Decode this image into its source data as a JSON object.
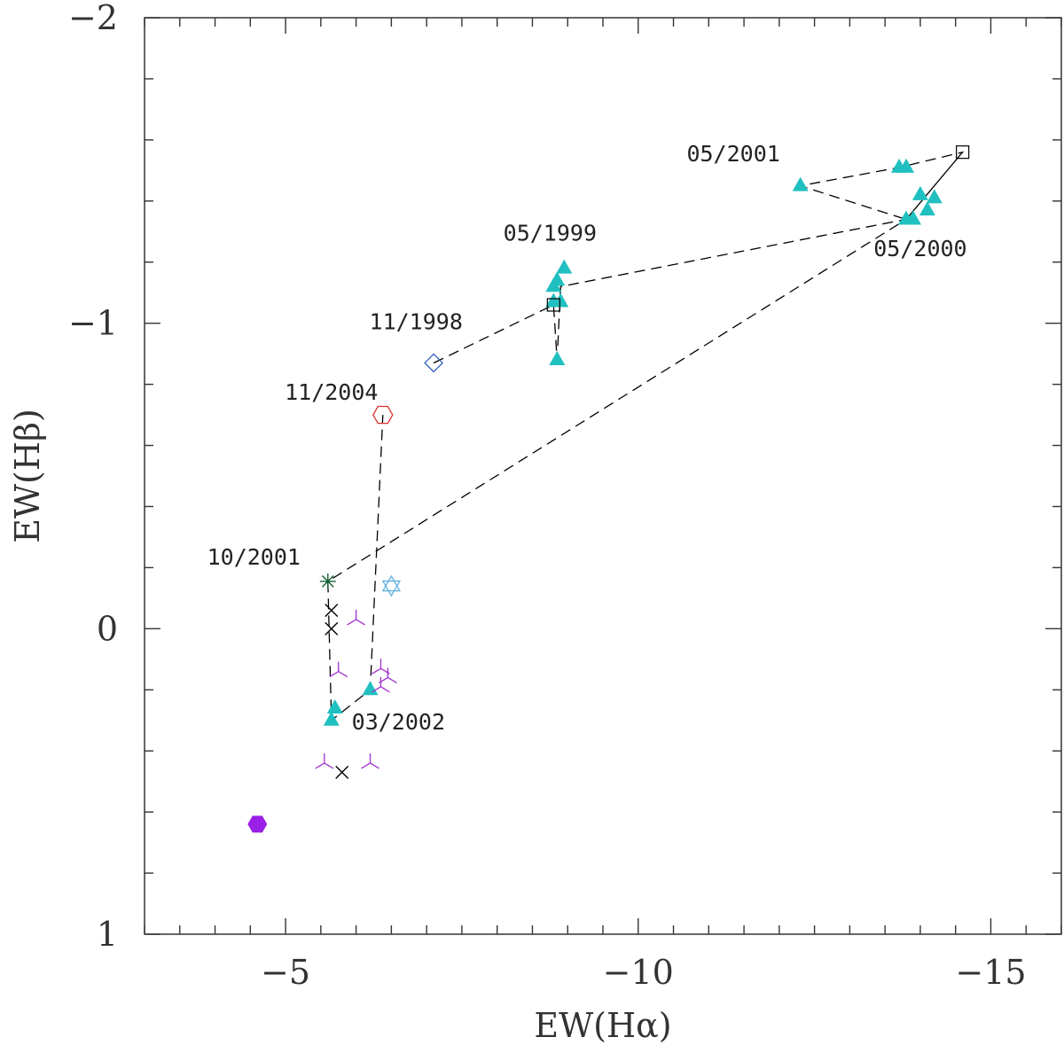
{
  "chart_data": {
    "type": "scatter",
    "xlabel": "EW(Hα)",
    "ylabel": "EW(Hβ)",
    "xlim": [
      -3,
      -16
    ],
    "ylim": [
      1,
      -2
    ],
    "xticks": [
      {
        "value": -5,
        "label": "−5"
      },
      {
        "value": -10,
        "label": "−10"
      },
      {
        "value": -15,
        "label": "−15"
      }
    ],
    "yticks": [
      {
        "value": -2,
        "label": "−2"
      },
      {
        "value": -1,
        "label": "−1"
      },
      {
        "value": 0,
        "label": "0"
      },
      {
        "value": 1,
        "label": "1"
      }
    ],
    "colors": {
      "triangle": "#20c0c0",
      "tripod": "#a030d0",
      "cross": "#000000",
      "hexagon_filled": "#9a20e8",
      "hexagon_open": "#e03030",
      "diamond": "#3060c0",
      "star": "#60b0e0",
      "asterisk": "#106030",
      "square": "#000000",
      "line": "#000000"
    },
    "series": [
      {
        "name": "triangles",
        "marker": "triangle",
        "color": "#20c0c0",
        "points": [
          [
            -8.95,
            -1.18
          ],
          [
            -8.85,
            -1.14
          ],
          [
            -8.8,
            -1.12
          ],
          [
            -8.8,
            -1.07
          ],
          [
            -8.9,
            -1.07
          ],
          [
            -8.85,
            -0.88
          ],
          [
            -13.7,
            -1.51
          ],
          [
            -13.8,
            -1.51
          ],
          [
            -12.3,
            -1.45
          ],
          [
            -14.0,
            -1.42
          ],
          [
            -14.2,
            -1.41
          ],
          [
            -14.1,
            -1.37
          ],
          [
            -13.8,
            -1.34
          ],
          [
            -13.9,
            -1.34
          ],
          [
            -5.7,
            0.26
          ],
          [
            -5.65,
            0.3
          ],
          [
            -6.2,
            0.2
          ]
        ]
      },
      {
        "name": "tripods",
        "marker": "tripod",
        "color": "#a030d0",
        "points": [
          [
            -6.0,
            -0.03
          ],
          [
            -5.75,
            0.14
          ],
          [
            -6.35,
            0.13
          ],
          [
            -6.45,
            0.16
          ],
          [
            -6.35,
            0.19
          ],
          [
            -5.55,
            0.44
          ],
          [
            -6.2,
            0.44
          ]
        ]
      },
      {
        "name": "crosses",
        "marker": "cross",
        "color": "#000000",
        "points": [
          [
            -5.65,
            -0.06
          ],
          [
            -5.65,
            0.0
          ],
          [
            -5.8,
            0.47
          ]
        ]
      },
      {
        "name": "square",
        "marker": "square",
        "color": "#000000",
        "points": [
          [
            -14.6,
            -1.56
          ],
          [
            -8.8,
            -1.06
          ]
        ]
      },
      {
        "name": "diamond",
        "marker": "diamond",
        "color": "#3060c0",
        "points": [
          [
            -7.1,
            -0.87
          ]
        ]
      },
      {
        "name": "open-hexagon",
        "marker": "hexagon-open",
        "color": "#e03030",
        "points": [
          [
            -6.38,
            -0.7
          ]
        ]
      },
      {
        "name": "filled-hexagon",
        "marker": "hexagon-filled",
        "color": "#9a20e8",
        "points": [
          [
            -4.6,
            0.64
          ]
        ]
      },
      {
        "name": "star",
        "marker": "star",
        "color": "#60b0e0",
        "points": [
          [
            -6.5,
            -0.14
          ]
        ]
      },
      {
        "name": "asterisk",
        "marker": "asterisk",
        "color": "#106030",
        "points": [
          [
            -5.6,
            -0.155
          ]
        ]
      }
    ],
    "path": [
      [
        -7.1,
        -0.87
      ],
      [
        -8.8,
        -1.06
      ],
      [
        -8.85,
        -0.88
      ],
      [
        -8.9,
        -1.12
      ],
      [
        -13.8,
        -1.34
      ],
      [
        -14.6,
        -1.56
      ],
      [
        -13.8,
        -1.34
      ],
      [
        -12.3,
        -1.45
      ],
      [
        -13.7,
        -1.51
      ],
      [
        -14.6,
        -1.56
      ],
      [
        -13.8,
        -1.34
      ],
      [
        -5.6,
        -0.155
      ],
      [
        -5.65,
        0.3
      ],
      [
        -6.2,
        0.2
      ],
      [
        -6.38,
        -0.7
      ]
    ],
    "annotations": [
      {
        "text": "05/2001",
        "x": -11.35,
        "y": -1.53
      },
      {
        "text": "05/2000",
        "x": -14.0,
        "y": -1.22
      },
      {
        "text": "05/1999",
        "x": -8.75,
        "y": -1.27
      },
      {
        "text": "11/1998",
        "x": -6.85,
        "y": -0.98
      },
      {
        "text": "11/2004",
        "x": -5.65,
        "y": -0.75
      },
      {
        "text": "10/2001",
        "x": -4.55,
        "y": -0.21
      },
      {
        "text": "03/2002",
        "x": -6.6,
        "y": 0.33
      }
    ]
  }
}
